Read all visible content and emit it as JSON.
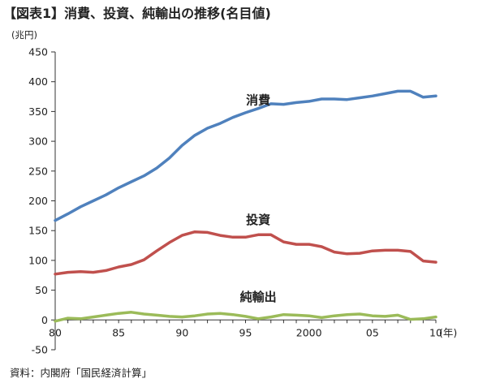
{
  "chart_data": {
    "type": "line",
    "title": "【図表1】消費、投資、純輸出の推移(名目値)",
    "ylabel": "(兆円)",
    "xlabel": "(年)",
    "source": "資料：内閣府「国民経済計算」",
    "ylim": [
      -50,
      450
    ],
    "yticks": [
      -50,
      0,
      50,
      100,
      150,
      200,
      250,
      300,
      350,
      400,
      450
    ],
    "xlim": [
      1980,
      2010
    ],
    "xticks": [
      {
        "value": 1980,
        "label": "80"
      },
      {
        "value": 1985,
        "label": "85"
      },
      {
        "value": 1990,
        "label": "90"
      },
      {
        "value": 1995,
        "label": "95"
      },
      {
        "value": 2000,
        "label": "2000"
      },
      {
        "value": 2005,
        "label": "05"
      },
      {
        "value": 2010,
        "label": "10"
      }
    ],
    "grid": false,
    "x": [
      1980,
      1981,
      1982,
      1983,
      1984,
      1985,
      1986,
      1987,
      1988,
      1989,
      1990,
      1991,
      1992,
      1993,
      1994,
      1995,
      1996,
      1997,
      1998,
      1999,
      2000,
      2001,
      2002,
      2003,
      2004,
      2005,
      2006,
      2007,
      2008,
      2009,
      2010
    ],
    "series": [
      {
        "name": "消費",
        "color": "#4f81bd",
        "label_at": {
          "x": 1996,
          "y": 362
        },
        "values": [
          167,
          178,
          190,
          200,
          210,
          222,
          232,
          242,
          255,
          272,
          293,
          310,
          322,
          330,
          340,
          348,
          355,
          363,
          362,
          365,
          367,
          371,
          371,
          370,
          373,
          376,
          380,
          384,
          384,
          374,
          376
        ]
      },
      {
        "name": "投資",
        "color": "#c0504d",
        "label_at": {
          "x": 1996,
          "y": 161
        },
        "values": [
          77,
          80,
          81,
          80,
          83,
          89,
          93,
          101,
          116,
          130,
          142,
          148,
          147,
          142,
          139,
          139,
          143,
          143,
          131,
          127,
          127,
          123,
          114,
          111,
          112,
          116,
          117,
          117,
          115,
          99,
          97
        ]
      },
      {
        "name": "純輸出",
        "color": "#9bbb59",
        "label_at": {
          "x": 1996,
          "y": 32
        },
        "values": [
          -2,
          3,
          2,
          5,
          8,
          11,
          13,
          10,
          8,
          6,
          5,
          7,
          10,
          11,
          9,
          6,
          2,
          5,
          9,
          8,
          7,
          4,
          7,
          9,
          10,
          7,
          6,
          8,
          1,
          2,
          5
        ]
      }
    ]
  }
}
